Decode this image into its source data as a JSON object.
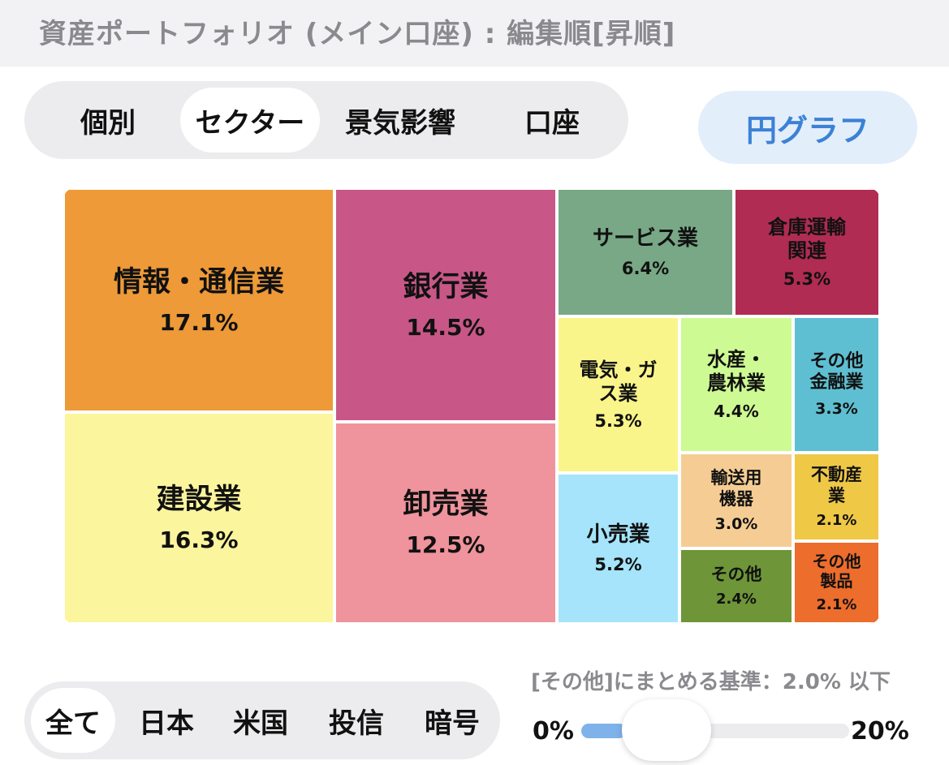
{
  "header": {
    "title": "資産ポートフォリオ (メイン口座) : 編集順[昇順]"
  },
  "view_tabs": [
    {
      "label": "個別",
      "active": false
    },
    {
      "label": "セクター",
      "active": true
    },
    {
      "label": "景気影響",
      "active": false
    },
    {
      "label": "口座",
      "active": false
    }
  ],
  "pie_button": {
    "label": "円グラフ"
  },
  "chart_data": {
    "type": "treemap",
    "unit": "%",
    "items": [
      {
        "name": "情報・通信業",
        "value": 17.1,
        "label": "17.1%",
        "color": "#ee9a38"
      },
      {
        "name": "建設業",
        "value": 16.3,
        "label": "16.3%",
        "color": "#fbf59d"
      },
      {
        "name": "銀行業",
        "value": 14.5,
        "label": "14.5%",
        "color": "#c85788"
      },
      {
        "name": "卸売業",
        "value": 12.5,
        "label": "12.5%",
        "color": "#ef939c"
      },
      {
        "name": "サービス業",
        "value": 6.4,
        "label": "6.4%",
        "color": "#78a886"
      },
      {
        "name": "倉庫運輸関連",
        "value": 5.3,
        "label": "5.3%",
        "color": "#b02c52"
      },
      {
        "name": "電気・ガス業",
        "value": 5.3,
        "label": "5.3%",
        "color": "#faf58a"
      },
      {
        "name": "小売業",
        "value": 5.2,
        "label": "5.2%",
        "color": "#a5e4fb"
      },
      {
        "name": "水産・農林業",
        "value": 4.4,
        "label": "4.4%",
        "color": "#cdfa92"
      },
      {
        "name": "その他金融業",
        "value": 3.3,
        "label": "3.3%",
        "color": "#5fbfd2"
      },
      {
        "name": "輸送用機器",
        "value": 3.0,
        "label": "3.0%",
        "color": "#f5cd94"
      },
      {
        "name": "その他",
        "value": 2.4,
        "label": "2.4%",
        "color": "#6e9538"
      },
      {
        "name": "不動産業",
        "value": 2.1,
        "label": "2.1%",
        "color": "#efc846"
      },
      {
        "name": "その他製品",
        "value": 2.1,
        "label": "2.1%",
        "color": "#ec6d2c"
      }
    ]
  },
  "region_tabs": [
    {
      "label": "全て",
      "active": true
    },
    {
      "label": "日本",
      "active": false
    },
    {
      "label": "米国",
      "active": false
    },
    {
      "label": "投信",
      "active": false
    },
    {
      "label": "暗号",
      "active": false
    }
  ],
  "threshold": {
    "text": "[その他]にまとめる基準：2.0% 以下",
    "min_label": "0%",
    "max_label": "20%",
    "value": 2.0,
    "min": 0,
    "max": 20
  }
}
